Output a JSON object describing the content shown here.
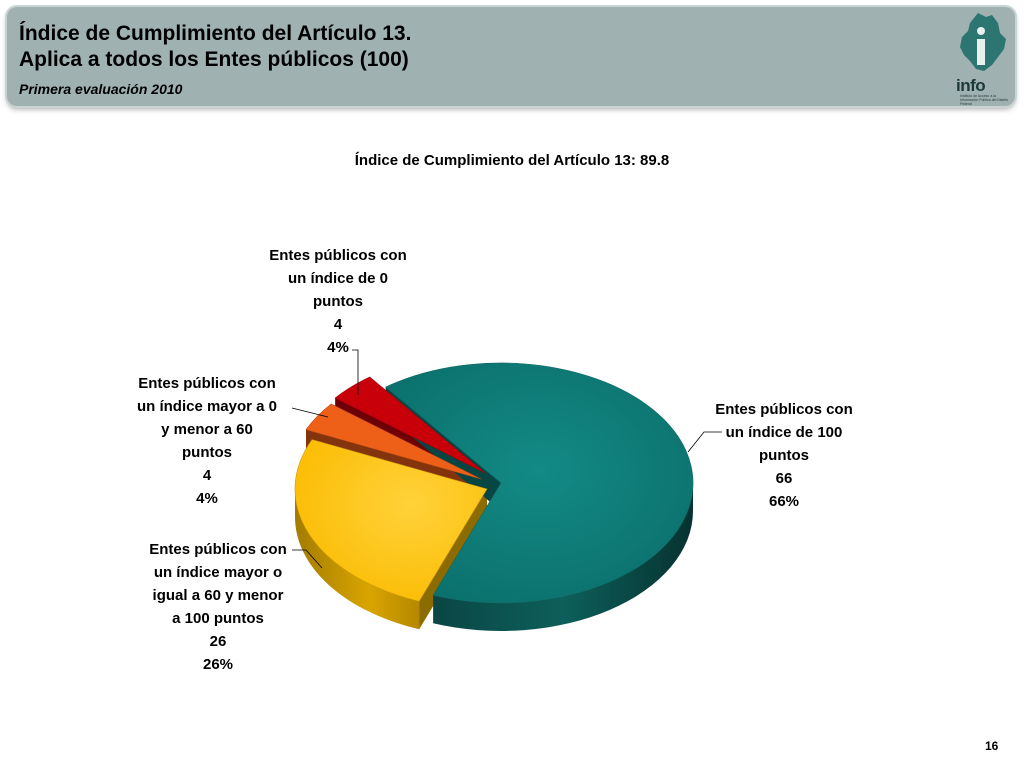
{
  "header": {
    "title_line1": "Índice de Cumplimiento del Artículo 13.",
    "title_line2": "Aplica a todos los Entes públicos (100)",
    "subtitle": "Primera evaluación 2010",
    "logo_text": "info",
    "logo_subtext": "Instituto de Acceso a la Información Pública del Distrito Federal"
  },
  "page_number": "16",
  "colors": {
    "header_bg": "#9fb1b1",
    "teal": "#0f7f7a",
    "yellow": "#fec200",
    "orange": "#ee5f17",
    "red": "#c8000a"
  },
  "chart_data": {
    "type": "pie",
    "title": "Índice de Cumplimiento del Artículo 13: 89.8",
    "three_d": true,
    "exploded": true,
    "slices": [
      {
        "label_lines": [
          "Entes públicos con",
          "un índice de 100",
          "puntos",
          "66",
          "66%"
        ],
        "value": 66,
        "percent": "66%",
        "color": "#0f7f7a"
      },
      {
        "label_lines": [
          "Entes públicos con",
          "un índice mayor o",
          "igual a 60 y menor",
          "a 100 puntos",
          "26",
          "26%"
        ],
        "value": 26,
        "percent": "26%",
        "color": "#fec200"
      },
      {
        "label_lines": [
          "Entes públicos con",
          "un índice mayor a 0",
          "y menor a 60",
          "puntos",
          "4",
          "4%"
        ],
        "value": 4,
        "percent": "4%",
        "color": "#ee5f17"
      },
      {
        "label_lines": [
          "Entes públicos con",
          "un índice de 0",
          "puntos",
          "4",
          "4%"
        ],
        "value": 4,
        "percent": "4%",
        "color": "#c8000a"
      }
    ]
  }
}
